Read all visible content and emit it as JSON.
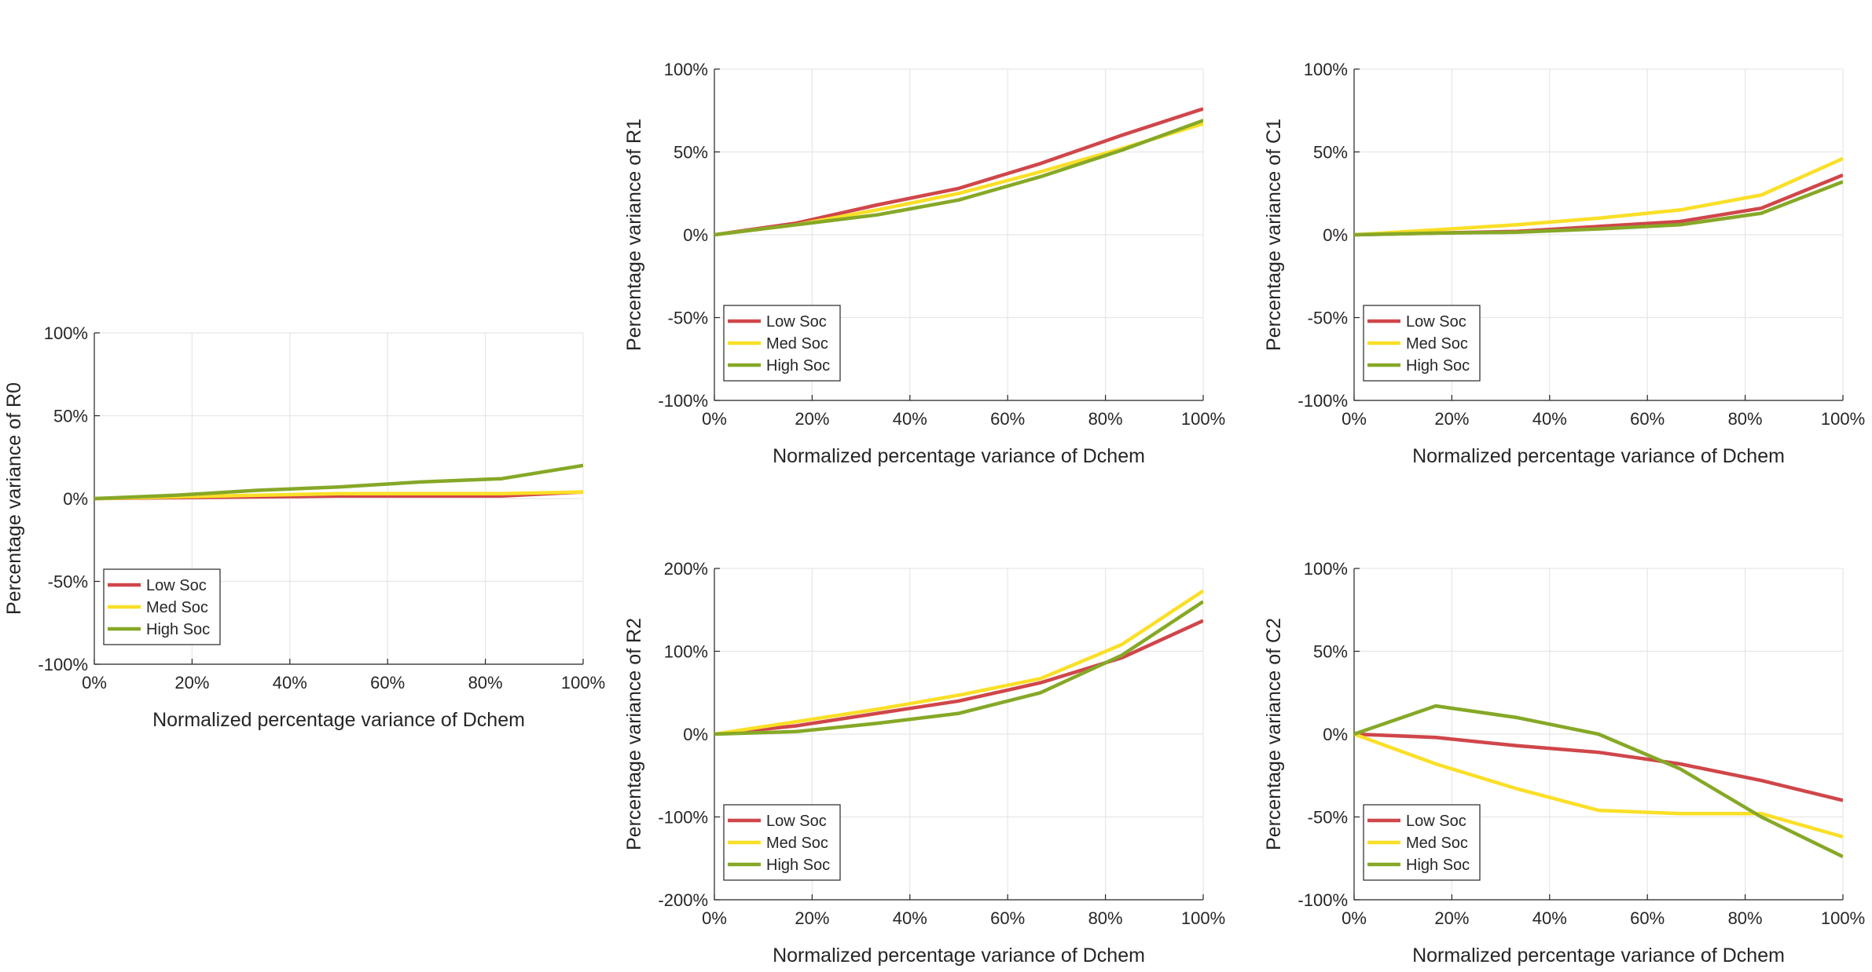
{
  "colors": {
    "low": "#D0464A",
    "med": "#FADF27",
    "high": "#86A827",
    "axis": "#262626",
    "grid": "#E6E6E6"
  },
  "chart_data": [
    {
      "id": "r0",
      "type": "line",
      "title": "",
      "xlabel": "Normalized percentage variance of Dchem",
      "ylabel": "Percentage variance of R0",
      "xlim": [
        0,
        100
      ],
      "ylim": [
        -100,
        100
      ],
      "xticks": [
        0,
        20,
        40,
        60,
        80,
        100
      ],
      "xtick_labels": [
        "0%",
        "20%",
        "40%",
        "60%",
        "80%",
        "100%"
      ],
      "yticks": [
        -100,
        -50,
        0,
        50,
        100
      ],
      "ytick_labels": [
        "-100%",
        "-50%",
        "0%",
        "50%",
        "100%"
      ],
      "grid": true,
      "legend_position": "bottom-left",
      "x": [
        0,
        16.7,
        33.3,
        50,
        66.7,
        83.3,
        100
      ],
      "series": [
        {
          "name": "Low Soc",
          "color_key": "low",
          "values": [
            0,
            0.5,
            1,
            1.5,
            1.5,
            1.5,
            4
          ]
        },
        {
          "name": "Med Soc",
          "color_key": "med",
          "values": [
            0,
            1,
            2,
            3,
            3,
            3,
            4
          ]
        },
        {
          "name": "High Soc",
          "color_key": "high",
          "values": [
            0,
            2,
            5,
            7,
            10,
            12,
            20
          ]
        }
      ]
    },
    {
      "id": "r1",
      "type": "line",
      "title": "",
      "xlabel": "Normalized percentage variance of Dchem",
      "ylabel": "Percentage variance of R1",
      "xlim": [
        0,
        100
      ],
      "ylim": [
        -100,
        100
      ],
      "xticks": [
        0,
        20,
        40,
        60,
        80,
        100
      ],
      "xtick_labels": [
        "0%",
        "20%",
        "40%",
        "60%",
        "80%",
        "100%"
      ],
      "yticks": [
        -100,
        -50,
        0,
        50,
        100
      ],
      "ytick_labels": [
        "-100%",
        "-50%",
        "0%",
        "50%",
        "100%"
      ],
      "grid": true,
      "legend_position": "bottom-left",
      "x": [
        0,
        16.7,
        33.3,
        50,
        66.7,
        83.3,
        100
      ],
      "series": [
        {
          "name": "Low Soc",
          "color_key": "low",
          "values": [
            0,
            7,
            18,
            28,
            43,
            60,
            76
          ]
        },
        {
          "name": "Med Soc",
          "color_key": "med",
          "values": [
            0,
            6,
            15,
            25,
            38,
            52,
            67
          ]
        },
        {
          "name": "High Soc",
          "color_key": "high",
          "values": [
            0,
            6,
            12,
            21,
            35,
            51,
            69
          ]
        }
      ]
    },
    {
      "id": "c1",
      "type": "line",
      "title": "",
      "xlabel": "Normalized percentage variance of Dchem",
      "ylabel": "Percentage variance of C1",
      "xlim": [
        0,
        100
      ],
      "ylim": [
        -100,
        100
      ],
      "xticks": [
        0,
        20,
        40,
        60,
        80,
        100
      ],
      "xtick_labels": [
        "0%",
        "20%",
        "40%",
        "60%",
        "80%",
        "100%"
      ],
      "yticks": [
        -100,
        -50,
        0,
        50,
        100
      ],
      "ytick_labels": [
        "-100%",
        "-50%",
        "0%",
        "50%",
        "100%"
      ],
      "grid": true,
      "legend_position": "bottom-left",
      "x": [
        0,
        16.7,
        33.3,
        50,
        66.7,
        83.3,
        100
      ],
      "series": [
        {
          "name": "Low Soc",
          "color_key": "low",
          "values": [
            0,
            1,
            2,
            5,
            8,
            16,
            36
          ]
        },
        {
          "name": "Med Soc",
          "color_key": "med",
          "values": [
            0,
            3,
            6,
            10,
            15,
            24,
            46
          ]
        },
        {
          "name": "High Soc",
          "color_key": "high",
          "values": [
            0,
            1,
            1.5,
            3.5,
            6,
            13,
            32
          ]
        }
      ]
    },
    {
      "id": "r2",
      "type": "line",
      "title": "",
      "xlabel": "Normalized percentage variance of Dchem",
      "ylabel": "Percentage variance of R2",
      "xlim": [
        0,
        100
      ],
      "ylim": [
        -200,
        200
      ],
      "xticks": [
        0,
        20,
        40,
        60,
        80,
        100
      ],
      "xtick_labels": [
        "0%",
        "20%",
        "40%",
        "60%",
        "80%",
        "100%"
      ],
      "yticks": [
        -200,
        -100,
        0,
        100,
        200
      ],
      "ytick_labels": [
        "-200%",
        "-100%",
        "0%",
        "100%",
        "200%"
      ],
      "grid": true,
      "legend_position": "bottom-left",
      "x": [
        0,
        16.7,
        33.3,
        50,
        66.7,
        83.3,
        100
      ],
      "series": [
        {
          "name": "Low Soc",
          "color_key": "low",
          "values": [
            0,
            10,
            25,
            40,
            62,
            92,
            137
          ]
        },
        {
          "name": "Med Soc",
          "color_key": "med",
          "values": [
            0,
            15,
            30,
            47,
            67,
            108,
            173
          ]
        },
        {
          "name": "High Soc",
          "color_key": "high",
          "values": [
            0,
            3,
            13,
            25,
            50,
            95,
            160
          ]
        }
      ]
    },
    {
      "id": "c2",
      "type": "line",
      "title": "",
      "xlabel": "Normalized percentage variance of Dchem",
      "ylabel": "Percentage variance of C2",
      "xlim": [
        0,
        100
      ],
      "ylim": [
        -100,
        100
      ],
      "xticks": [
        0,
        20,
        40,
        60,
        80,
        100
      ],
      "xtick_labels": [
        "0%",
        "20%",
        "40%",
        "60%",
        "80%",
        "100%"
      ],
      "yticks": [
        -100,
        -50,
        0,
        50,
        100
      ],
      "ytick_labels": [
        "-100%",
        "-50%",
        "0%",
        "50%",
        "100%"
      ],
      "grid": true,
      "legend_position": "bottom-left",
      "x": [
        0,
        16.7,
        33.3,
        50,
        66.7,
        83.3,
        100
      ],
      "series": [
        {
          "name": "Low Soc",
          "color_key": "low",
          "values": [
            0,
            -2,
            -7,
            -11,
            -18,
            -28,
            -40
          ]
        },
        {
          "name": "Med Soc",
          "color_key": "med",
          "values": [
            0,
            -18,
            -33,
            -46,
            -48,
            -48,
            -62
          ]
        },
        {
          "name": "High Soc",
          "color_key": "high",
          "values": [
            0,
            17,
            10,
            0,
            -21,
            -50,
            -74
          ]
        }
      ]
    }
  ]
}
